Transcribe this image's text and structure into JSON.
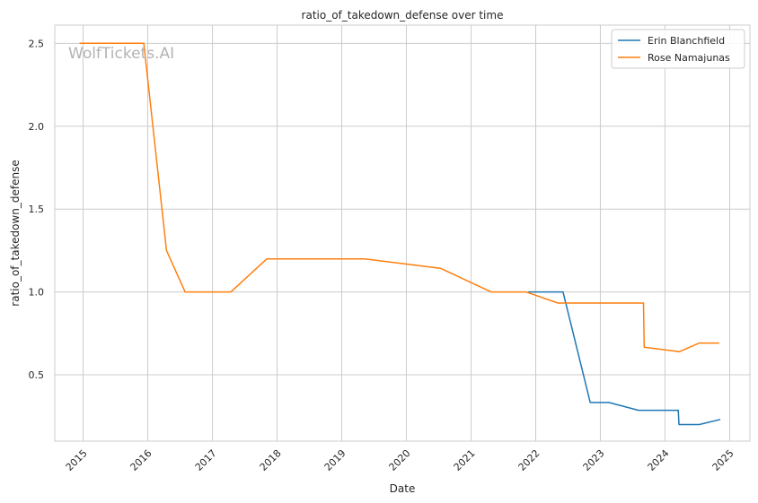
{
  "chart_data": {
    "type": "line",
    "title": "ratio_of_takedown_defense over time",
    "xlabel": "Date",
    "ylabel": "ratio_of_takedown_defense",
    "watermark": "WolfTickets.AI",
    "x_ticks": [
      "2015",
      "2016",
      "2017",
      "2018",
      "2019",
      "2020",
      "2021",
      "2022",
      "2023",
      "2024",
      "2025"
    ],
    "y_ticks": [
      "0.5",
      "1.0",
      "1.5",
      "2.0",
      "2.5"
    ],
    "xlim": [
      "2014-07-25",
      "2025-04-25"
    ],
    "ylim": [
      0.1,
      2.61
    ],
    "grid": true,
    "legend": "top-right",
    "series": [
      {
        "name": "Erin Blanchfield",
        "color": "#1f77b4",
        "points": [
          [
            "2021-11-20",
            1.0
          ],
          [
            "2022-06-04",
            1.0
          ],
          [
            "2022-11-05",
            0.333
          ],
          [
            "2023-02-18",
            0.333
          ],
          [
            "2023-08-05",
            0.286
          ],
          [
            "2024-03-16",
            0.286
          ],
          [
            "2024-03-20",
            0.2
          ],
          [
            "2024-07-13",
            0.2
          ],
          [
            "2024-11-09",
            0.231
          ]
        ]
      },
      {
        "name": "Rose Namajunas",
        "color": "#ff7f0e",
        "points": [
          [
            "2014-12-12",
            2.5
          ],
          [
            "2015-12-10",
            2.5
          ],
          [
            "2016-04-16",
            1.25
          ],
          [
            "2016-07-30",
            1.0
          ],
          [
            "2017-04-15",
            1.0
          ],
          [
            "2017-11-04",
            1.2
          ],
          [
            "2019-05-11",
            1.2
          ],
          [
            "2020-07-12",
            1.143
          ],
          [
            "2021-04-24",
            1.0
          ],
          [
            "2021-11-06",
            1.0
          ],
          [
            "2022-05-07",
            0.933
          ],
          [
            "2023-09-02",
            0.933
          ],
          [
            "2023-09-06",
            0.667
          ],
          [
            "2024-03-23",
            0.64
          ],
          [
            "2024-07-13",
            0.692
          ],
          [
            "2024-11-02",
            0.692
          ]
        ]
      }
    ]
  }
}
